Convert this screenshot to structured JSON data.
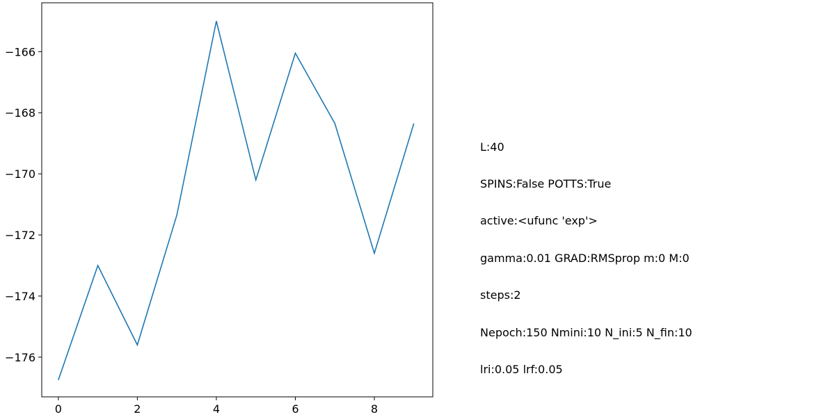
{
  "chart_data": {
    "type": "line",
    "title": "",
    "xlabel": "",
    "ylabel": "",
    "x": [
      0,
      1,
      2,
      3,
      4,
      5,
      6,
      7,
      8,
      9
    ],
    "series": [
      {
        "values": [
          -176.75,
          -173.0,
          -175.6,
          -171.35,
          -165.0,
          -170.2,
          -166.05,
          -168.35,
          -172.6,
          -168.35
        ]
      }
    ],
    "xlim": [
      -0.42,
      9.48
    ],
    "ylim": [
      -177.3,
      -164.4
    ],
    "xticks": [
      0,
      2,
      4,
      6,
      8
    ],
    "xtick_labels": [
      "0",
      "2",
      "4",
      "6",
      "8"
    ],
    "yticks": [
      -176,
      -174,
      -172,
      -170,
      -168,
      -166
    ],
    "ytick_labels": [
      "−176",
      "−174",
      "−172",
      "−170",
      "−168",
      "−166"
    ],
    "grid": false,
    "line_color": "#1f77b4"
  },
  "annotation": {
    "lines": [
      "L:40",
      "SPINS:False POTTS:True",
      "active:<ufunc 'exp'>",
      "gamma:0.01 GRAD:RMSprop m:0 M:0",
      "steps:2",
      "Nepoch:150 Nmini:10 N_ini:5 N_fin:10",
      "lri:0.05 lrf:0.05"
    ]
  }
}
